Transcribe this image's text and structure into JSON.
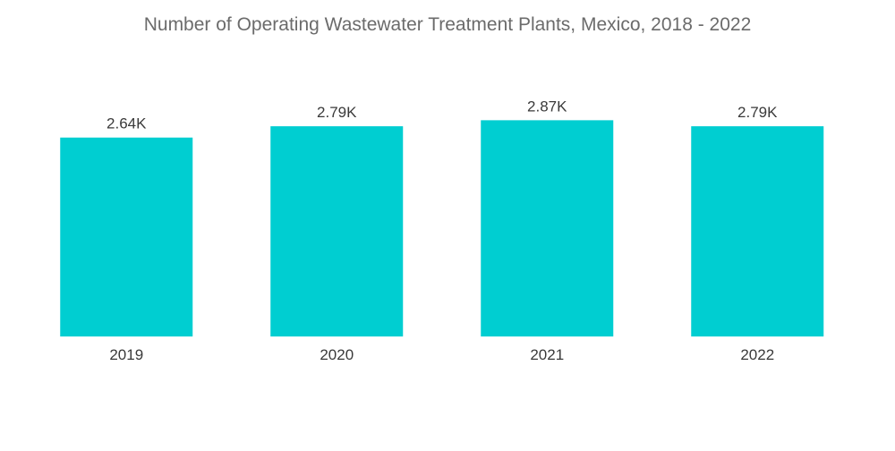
{
  "chart_data": {
    "type": "bar",
    "title": "Number of Operating Wastewater Treatment Plants, Mexico, 2018 - 2022",
    "xlabel": "",
    "ylabel": "",
    "categories": [
      "2019",
      "2020",
      "2021",
      "2022"
    ],
    "values": [
      2640,
      2790,
      2870,
      2790
    ],
    "data_labels": [
      "2.64K",
      "2.79K",
      "2.87K",
      "2.79K"
    ],
    "ylim": [
      0,
      3000
    ],
    "grid": false,
    "legend": "none",
    "bar_color": "#00CED1"
  }
}
